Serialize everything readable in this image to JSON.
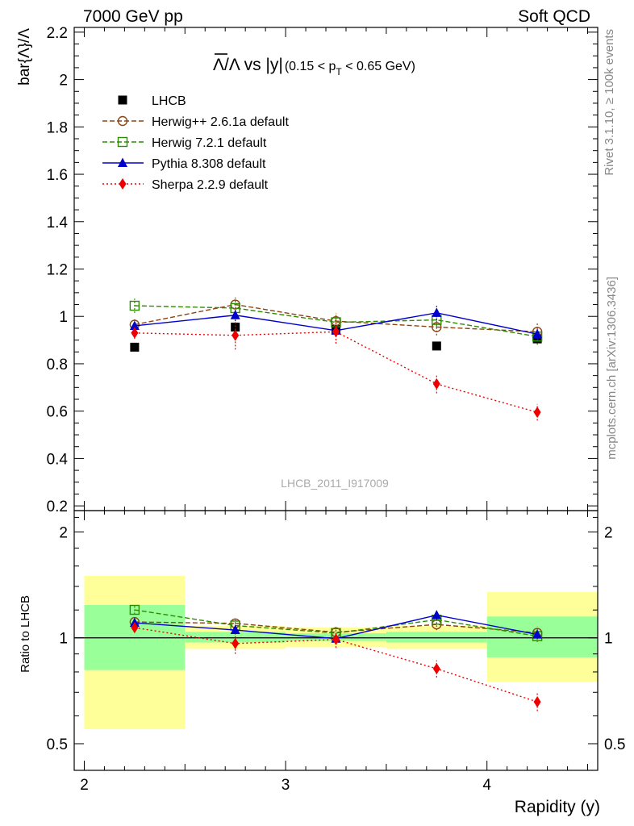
{
  "header": {
    "left": "7000 GeV pp",
    "right": "Soft QCD"
  },
  "side_text": {
    "rivet": "Rivet 3.1.10, ≥ 100k events",
    "url": "mcplots.cern.ch [arXiv:1306.3436]"
  },
  "watermark": "LHCB_2011_I917009",
  "chart_data": {
    "type": "scatter",
    "title_main": "Λ/Λ vs |y|",
    "title_overbar_char": "Λ",
    "title_cut": "(0.15 < p",
    "title_cut_sub": "T",
    "title_cut_end": " < 0.65 GeV)",
    "ylabel": "bar{Λ}/Λ",
    "xlabel": "Rapidity (y)",
    "ratio_ylabel": "Ratio to LHCB",
    "xlim": [
      1.95,
      4.55
    ],
    "ylim": [
      0.18,
      2.22
    ],
    "ratio_ylim": [
      0.42,
      2.3
    ],
    "x_ticks": [
      {
        "value": 2,
        "label": "2"
      },
      {
        "value": 3,
        "label": "3"
      },
      {
        "value": 4,
        "label": "4"
      }
    ],
    "y_ticks": [
      {
        "value": 0.2,
        "label": "0.2"
      },
      {
        "value": 0.4,
        "label": "0.4"
      },
      {
        "value": 0.6,
        "label": "0.6"
      },
      {
        "value": 0.8,
        "label": "0.8"
      },
      {
        "value": 1.0,
        "label": "1"
      },
      {
        "value": 1.2,
        "label": "1.2"
      },
      {
        "value": 1.4,
        "label": "1.4"
      },
      {
        "value": 1.6,
        "label": "1.6"
      },
      {
        "value": 1.8,
        "label": "1.8"
      },
      {
        "value": 2.0,
        "label": "2"
      },
      {
        "value": 2.2,
        "label": "2.2"
      }
    ],
    "ratio_ticks": [
      {
        "value": 0.5,
        "label": "0.5"
      },
      {
        "value": 1.0,
        "label": "1"
      },
      {
        "value": 2.0,
        "label": "2"
      }
    ],
    "bins": [
      {
        "lo": 2.0,
        "hi": 2.5,
        "band1_lo": 0.81,
        "band1_hi": 1.24,
        "band2_lo": 0.55,
        "band2_hi": 1.5
      },
      {
        "lo": 2.5,
        "hi": 3.0,
        "band1_lo": 0.97,
        "band1_hi": 1.04,
        "band2_lo": 0.93,
        "band2_hi": 1.08
      },
      {
        "lo": 3.0,
        "hi": 3.5,
        "band1_lo": 0.98,
        "band1_hi": 1.03,
        "band2_lo": 0.94,
        "band2_hi": 1.07
      },
      {
        "lo": 3.5,
        "hi": 4.0,
        "band1_lo": 0.97,
        "band1_hi": 1.04,
        "band2_lo": 0.93,
        "band2_hi": 1.08
      },
      {
        "lo": 4.0,
        "hi": 4.55,
        "band1_lo": 0.88,
        "band1_hi": 1.15,
        "band2_lo": 0.75,
        "band2_hi": 1.35
      }
    ],
    "series": [
      {
        "name": "LHCB",
        "color": "#000000",
        "marker": "square-filled",
        "dash": "none",
        "line": false,
        "x": [
          2.25,
          2.75,
          3.25,
          3.75,
          4.25
        ],
        "y": [
          0.87,
          0.955,
          0.945,
          0.875,
          0.905
        ],
        "err": [
          0.0,
          0.0,
          0.0,
          0.0,
          0.0
        ]
      },
      {
        "name": "Herwig++ 2.6.1a default",
        "color": "#8b4513",
        "marker": "circle-open",
        "dash": "6,3",
        "line": true,
        "x": [
          2.25,
          2.75,
          3.25,
          3.75,
          4.25
        ],
        "y": [
          0.965,
          1.05,
          0.98,
          0.955,
          0.935
        ],
        "err": [
          0.025,
          0.03,
          0.035,
          0.035,
          0.04
        ]
      },
      {
        "name": "Herwig 7.2.1 default",
        "color": "#2e8b00",
        "marker": "square-open",
        "dash": "6,3",
        "line": true,
        "x": [
          2.25,
          2.75,
          3.25,
          3.75,
          4.25
        ],
        "y": [
          1.045,
          1.035,
          0.975,
          0.985,
          0.915
        ],
        "err": [
          0.03,
          0.03,
          0.03,
          0.03,
          0.035
        ]
      },
      {
        "name": "Pythia 8.308 default",
        "color": "#0000cc",
        "marker": "triangle-filled",
        "dash": "none",
        "line": true,
        "x": [
          2.25,
          2.75,
          3.25,
          3.75,
          4.25
        ],
        "y": [
          0.96,
          1.005,
          0.94,
          1.015,
          0.925
        ],
        "err": [
          0.02,
          0.025,
          0.025,
          0.03,
          0.025
        ]
      },
      {
        "name": "Sherpa 2.2.9 default",
        "color": "#ee0000",
        "marker": "diamond-filled",
        "dash": "2,3",
        "line": true,
        "x": [
          2.25,
          2.75,
          3.25,
          3.75,
          4.25
        ],
        "y": [
          0.93,
          0.92,
          0.935,
          0.715,
          0.595
        ],
        "err": [
          0.025,
          0.06,
          0.05,
          0.04,
          0.035
        ]
      }
    ]
  }
}
